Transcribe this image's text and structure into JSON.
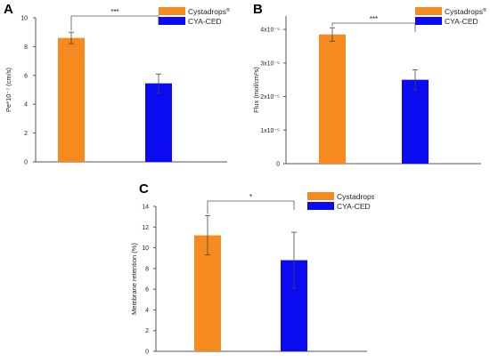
{
  "legend": {
    "series": [
      {
        "name": "Cystadrops",
        "sup": "®",
        "color": "#f58a1f"
      },
      {
        "name": "CYA-CED",
        "sup": "",
        "color": "#0b0bf2"
      }
    ]
  },
  "significance": {
    "A": "***",
    "B": "***",
    "C": "*"
  },
  "chart_data": [
    {
      "panel": "A",
      "type": "bar",
      "categories": [
        "Cystadrops®",
        "CYA-CED"
      ],
      "values": [
        8.6,
        5.45
      ],
      "errors": [
        0.4,
        0.65
      ],
      "ylabel": "Pe*10⁻⁷ (cm/s)",
      "ylim": [
        0,
        10
      ],
      "yticks": [
        0,
        2,
        4,
        6,
        8,
        10
      ],
      "ytick_labels": [
        "0",
        "2",
        "4",
        "6",
        "8",
        "10"
      ],
      "colors": [
        "#f58a1f",
        "#0b0bf2"
      ],
      "significance": "***",
      "legend": "top-right"
    },
    {
      "panel": "B",
      "type": "bar",
      "categories": [
        "Cystadrops®",
        "CYA-CED"
      ],
      "values": [
        3.85e-05,
        2.5e-05
      ],
      "errors": [
        2e-06,
        3e-06
      ],
      "ylabel": "Flux (mol/cm²s)",
      "ylim": [
        0,
        4.4e-05
      ],
      "yticks": [
        0,
        1e-05,
        2e-05,
        3e-05,
        4e-05
      ],
      "ytick_labels": [
        "0",
        "1x10⁻⁵",
        "2x10⁻⁵",
        "3x10⁻⁵",
        "4x10⁻⁵"
      ],
      "colors": [
        "#f58a1f",
        "#0b0bf2"
      ],
      "significance": "***",
      "legend": "top-right"
    },
    {
      "panel": "C",
      "type": "bar",
      "categories": [
        "Cystadrops®",
        "CYA-CED"
      ],
      "values": [
        11.2,
        8.8
      ],
      "errors": [
        1.9,
        2.7
      ],
      "ylabel": "Membrane retention (%)",
      "ylim": [
        0,
        14
      ],
      "yticks": [
        0,
        2,
        4,
        6,
        8,
        10,
        12,
        14
      ],
      "ytick_labels": [
        "0",
        "2",
        "4",
        "6",
        "8",
        "10",
        "12",
        "14"
      ],
      "colors": [
        "#f58a1f",
        "#0b0bf2"
      ],
      "significance": "*",
      "legend": "top-right"
    }
  ]
}
